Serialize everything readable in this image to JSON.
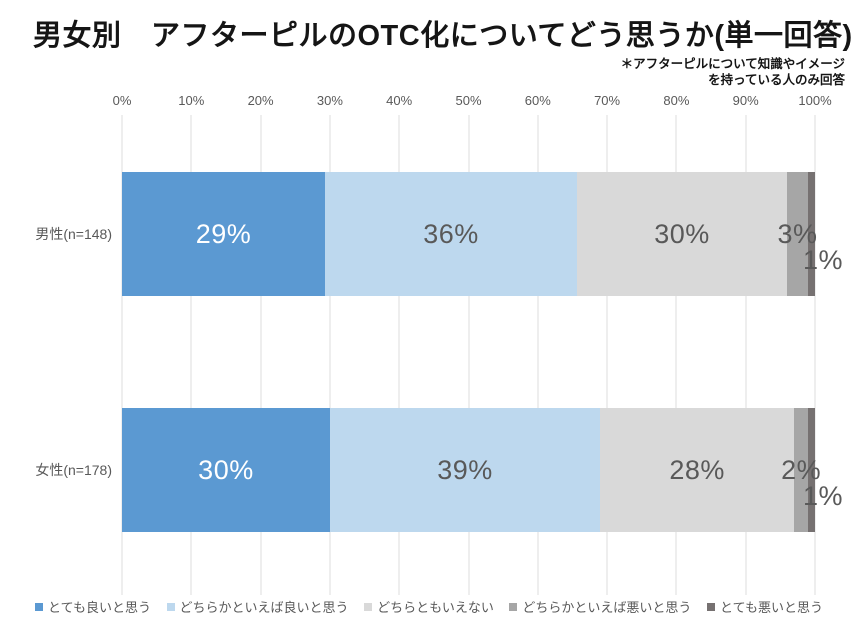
{
  "title": "男女別　アフターピルのOTC化についてどう思うか(単一回答)",
  "note": {
    "line1": "＊アフターピルについて知識やイメージ",
    "line2": "を持っている人のみ回答"
  },
  "chart_data": {
    "type": "bar",
    "variant": "horizontal-stacked-100",
    "title": "男女別　アフターピルのOTC化についてどう思うか(単一回答)",
    "xlabel": "",
    "ylabel": "",
    "xlim": [
      0,
      100
    ],
    "x_ticks": [
      "0%",
      "10%",
      "20%",
      "30%",
      "40%",
      "50%",
      "60%",
      "70%",
      "80%",
      "90%",
      "100%"
    ],
    "grid": true,
    "legend_position": "bottom",
    "unit": "%",
    "categories": [
      "男性(n=148)",
      "女性(n=178)"
    ],
    "series": [
      {
        "name": "とても良いと思う",
        "color": "#5B99D2",
        "values": [
          29,
          30
        ]
      },
      {
        "name": "どちらかといえば良いと思う",
        "color": "#BDD8EE",
        "values": [
          36,
          39
        ]
      },
      {
        "name": "どちらともいえない",
        "color": "#D9D9D9",
        "values": [
          30,
          28
        ]
      },
      {
        "name": "どちらかといえば悪いと思う",
        "color": "#A6A6A6",
        "values": [
          3,
          2
        ]
      },
      {
        "name": "とても悪いと思う",
        "color": "#767171",
        "values": [
          1,
          1
        ]
      }
    ],
    "data_label_colors": {
      "first_segment": "#ffffff",
      "other_segments": "#595959"
    }
  }
}
